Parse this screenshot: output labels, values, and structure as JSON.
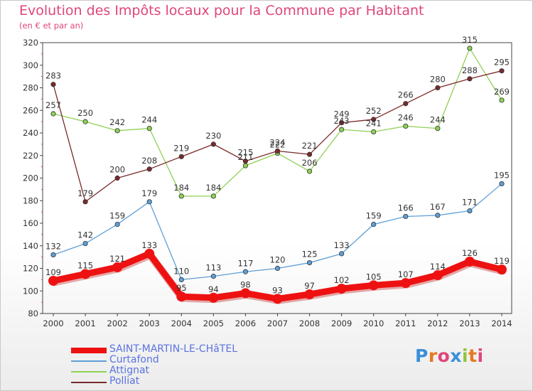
{
  "title": "Evolution des Impôts locaux pour la Commune par Habitant",
  "subtitle": "(en € et par an)",
  "brand": {
    "letters": [
      "P",
      "r",
      "o",
      "x",
      "i",
      "t",
      "i"
    ],
    "colors": [
      "#3b8fd9",
      "#e67a1e",
      "#e0457a",
      "#3b8fd9",
      "#8cc63f",
      "#e67a1e",
      "#e0457a"
    ]
  },
  "chart_data": {
    "type": "line",
    "x": [
      2000,
      2001,
      2002,
      2003,
      2004,
      2005,
      2006,
      2007,
      2008,
      2009,
      2010,
      2011,
      2012,
      2013,
      2014
    ],
    "ylim": [
      80,
      320
    ],
    "yticks": [
      80,
      100,
      120,
      140,
      160,
      180,
      200,
      220,
      240,
      260,
      280,
      300,
      320
    ],
    "grid": false,
    "legend_position": "bottom-left",
    "series": [
      {
        "name": "SAINT-MARTIN-LE-CHâTEL",
        "color": "#ee1111",
        "values": [
          109,
          115,
          121,
          133,
          95,
          94,
          98,
          93,
          97,
          102,
          105,
          107,
          114,
          126,
          119
        ]
      },
      {
        "name": "Curtafond",
        "color": "#5f9fd6",
        "values": [
          132,
          142,
          159,
          179,
          110,
          113,
          117,
          120,
          125,
          133,
          159,
          166,
          167,
          171,
          195
        ]
      },
      {
        "name": "Attignat",
        "color": "#8fd055",
        "values": [
          257,
          250,
          242,
          244,
          184,
          184,
          211,
          222,
          206,
          243,
          241,
          246,
          244,
          315,
          269
        ]
      },
      {
        "name": "Polliat",
        "color": "#7a2a2a",
        "values": [
          283,
          179,
          200,
          208,
          219,
          230,
          215,
          224,
          221,
          249,
          252,
          266,
          280,
          288,
          295
        ]
      }
    ]
  }
}
